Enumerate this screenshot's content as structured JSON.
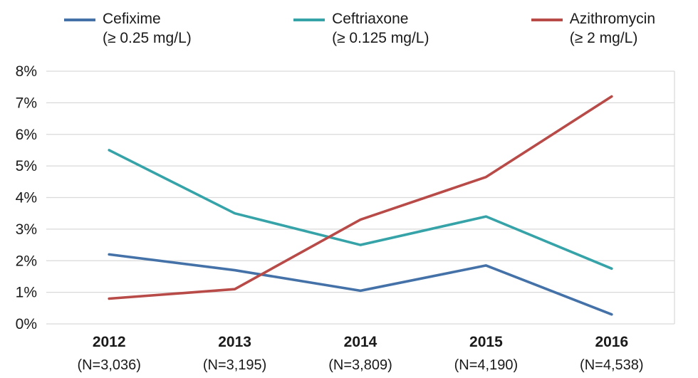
{
  "chart_data": {
    "type": "line",
    "title": "",
    "xlabel": "",
    "ylabel": "",
    "categories": [
      "2012",
      "2013",
      "2014",
      "2015",
      "2016"
    ],
    "category_sublabels": [
      "(N=3,036)",
      "(N=3,195)",
      "(N=3,809)",
      "(N=4,190)",
      "(N=4,538)"
    ],
    "yticks": [
      "0%",
      "1%",
      "2%",
      "3%",
      "4%",
      "5%",
      "6%",
      "7%",
      "8%"
    ],
    "ylim": [
      0,
      8
    ],
    "grid": true,
    "legend_position": "top",
    "series": [
      {
        "name": "Cefixime",
        "threshold": "(≥ 0.25 mg/L)",
        "color": "#4472a8",
        "values": [
          2.2,
          1.7,
          1.05,
          1.85,
          0.3
        ]
      },
      {
        "name": "Ceftriaxone",
        "threshold": "(≥ 0.125 mg/L)",
        "color": "#35a3a8",
        "values": [
          5.5,
          3.5,
          2.5,
          3.4,
          1.75
        ]
      },
      {
        "name": "Azithromycin",
        "threshold": "(≥ 2 mg/L)",
        "color": "#b84a48",
        "values": [
          0.8,
          1.1,
          3.3,
          4.65,
          7.2
        ]
      }
    ],
    "colors": {
      "grid": "#d9d9d9",
      "text": "#1a1a1a"
    }
  }
}
